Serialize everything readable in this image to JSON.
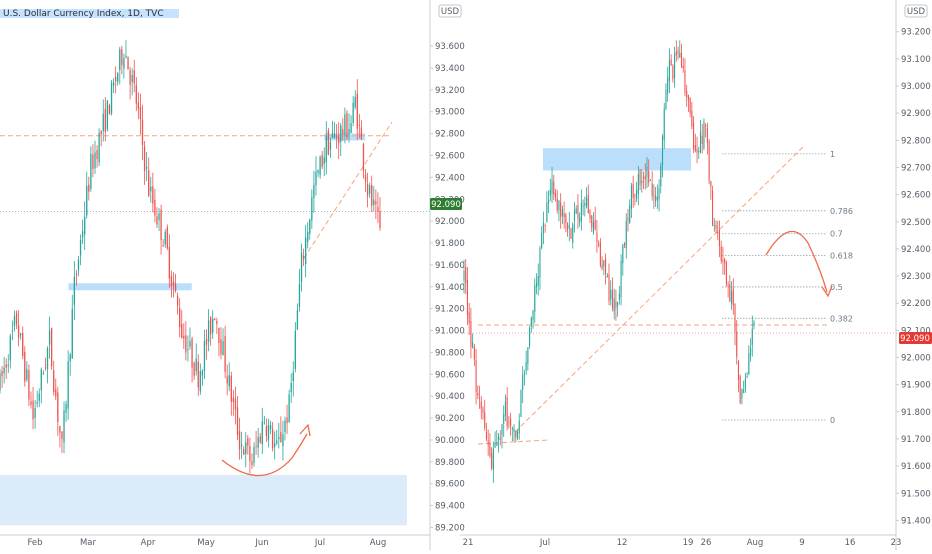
{
  "chart_data": [
    {
      "type": "candlestick",
      "title": "U.S. Dollar Currency Index, 1D, TVC",
      "currency": "USD",
      "y_ticks": [
        93.6,
        93.4,
        93.2,
        93.0,
        92.8,
        92.6,
        92.4,
        92.2,
        92.0,
        91.8,
        91.6,
        91.4,
        91.2,
        91.0,
        90.8,
        90.6,
        90.4,
        90.2,
        90.0,
        89.8,
        89.6,
        89.4,
        89.2
      ],
      "y_tick_labels": [
        "93.600",
        "93.400",
        "93.200",
        "93.000",
        "92.800",
        "92.600",
        "92.400",
        "92.200",
        "92.000",
        "91.800",
        "91.600",
        "91.400",
        "91.200",
        "91.000",
        "90.800",
        "90.600",
        "90.400",
        "90.200",
        "90.000",
        "89.800",
        "89.600",
        "89.400",
        "89.200"
      ],
      "ylim": [
        89.14,
        93.93
      ],
      "x_ticks": [
        "Feb",
        "Mar",
        "Apr",
        "May",
        "Jun",
        "Jul",
        "Aug"
      ],
      "last_price": 92.09,
      "last_price_label": "92.090",
      "path_points": [
        [
          0,
          90.5
        ],
        [
          8,
          91.1
        ],
        [
          16,
          90.2
        ],
        [
          24,
          90.9
        ],
        [
          30,
          89.9
        ],
        [
          36,
          91.4
        ],
        [
          44,
          92.5
        ],
        [
          52,
          93.0
        ],
        [
          60,
          93.6
        ],
        [
          66,
          93.1
        ],
        [
          72,
          92.3
        ],
        [
          80,
          91.8
        ],
        [
          88,
          91.0
        ],
        [
          96,
          90.6
        ],
        [
          104,
          91.2
        ],
        [
          110,
          90.6
        ],
        [
          116,
          90.0
        ],
        [
          122,
          89.8
        ],
        [
          128,
          90.2
        ],
        [
          134,
          89.9
        ],
        [
          140,
          90.3
        ],
        [
          146,
          91.6
        ],
        [
          152,
          92.3
        ],
        [
          158,
          92.7
        ],
        [
          164,
          92.8
        ],
        [
          170,
          92.9
        ],
        [
          172,
          93.1
        ],
        [
          178,
          92.3
        ],
        [
          184,
          91.9
        ]
      ],
      "annotations": {
        "resistance_level": 92.78,
        "support_zone": [
          89.22,
          89.68
        ],
        "highlight_bars": [
          {
            "from": 38,
            "to": 88,
            "level": 91.4
          },
          {
            "from": 162,
            "to": 172,
            "level": 92.77
          }
        ]
      }
    },
    {
      "type": "candlestick",
      "currency": "USD",
      "y_ticks": [
        93.2,
        93.1,
        93.0,
        92.9,
        92.8,
        92.7,
        92.6,
        92.5,
        92.4,
        92.3,
        92.2,
        92.1,
        92.0,
        91.9,
        91.8,
        91.7,
        91.6,
        91.5,
        91.4
      ],
      "y_tick_labels": [
        "93.200",
        "93.100",
        "93.000",
        "92.900",
        "92.800",
        "92.700",
        "92.600",
        "92.500",
        "92.400",
        "92.300",
        "92.200",
        "92.100",
        "92.000",
        "91.900",
        "91.800",
        "91.700",
        "91.600",
        "91.500",
        "91.400"
      ],
      "ylim": [
        91.35,
        93.28
      ],
      "x_ticks": [
        "21",
        "Jul",
        "12",
        "19",
        "26",
        "Aug",
        "9",
        "16",
        "23"
      ],
      "last_price": 92.09,
      "last_price_label": "92.090",
      "path_points": [
        [
          0,
          92.3
        ],
        [
          8,
          91.85
        ],
        [
          16,
          91.6
        ],
        [
          24,
          91.8
        ],
        [
          30,
          91.7
        ],
        [
          40,
          92.2
        ],
        [
          50,
          92.65
        ],
        [
          60,
          92.45
        ],
        [
          70,
          92.6
        ],
        [
          80,
          92.35
        ],
        [
          88,
          92.15
        ],
        [
          96,
          92.6
        ],
        [
          104,
          92.7
        ],
        [
          112,
          92.55
        ],
        [
          118,
          93.05
        ],
        [
          126,
          93.1
        ],
        [
          134,
          92.75
        ],
        [
          140,
          92.85
        ],
        [
          144,
          92.5
        ],
        [
          150,
          92.35
        ],
        [
          156,
          92.2
        ],
        [
          160,
          91.85
        ],
        [
          164,
          91.95
        ],
        [
          168,
          92.12
        ]
      ],
      "fibonacci": {
        "levels": [
          1,
          0.786,
          0.7,
          0.618,
          0.5,
          0.382,
          0
        ],
        "labels": [
          "1",
          "0.786",
          "0.7",
          "0.618",
          "0.5",
          "0.382",
          "0"
        ],
        "price_at_1": 92.75,
        "price_at_0": 91.77
      },
      "annotations": {
        "neckline_level": 92.12,
        "supply_zone": [
          92.7,
          92.76
        ]
      }
    }
  ],
  "colors": {
    "up": "#26a69a",
    "down": "#ef5350",
    "price_tag_left": "#2e7d32",
    "price_tag_right": "#e53935",
    "guide": "#f6a57d",
    "highlight_zone": "#bbdefb",
    "support_zone": "#dcebfa",
    "fib_line": "#90a4ae",
    "axis_line": "#c9cdd3",
    "arrow": "#f06b47"
  }
}
